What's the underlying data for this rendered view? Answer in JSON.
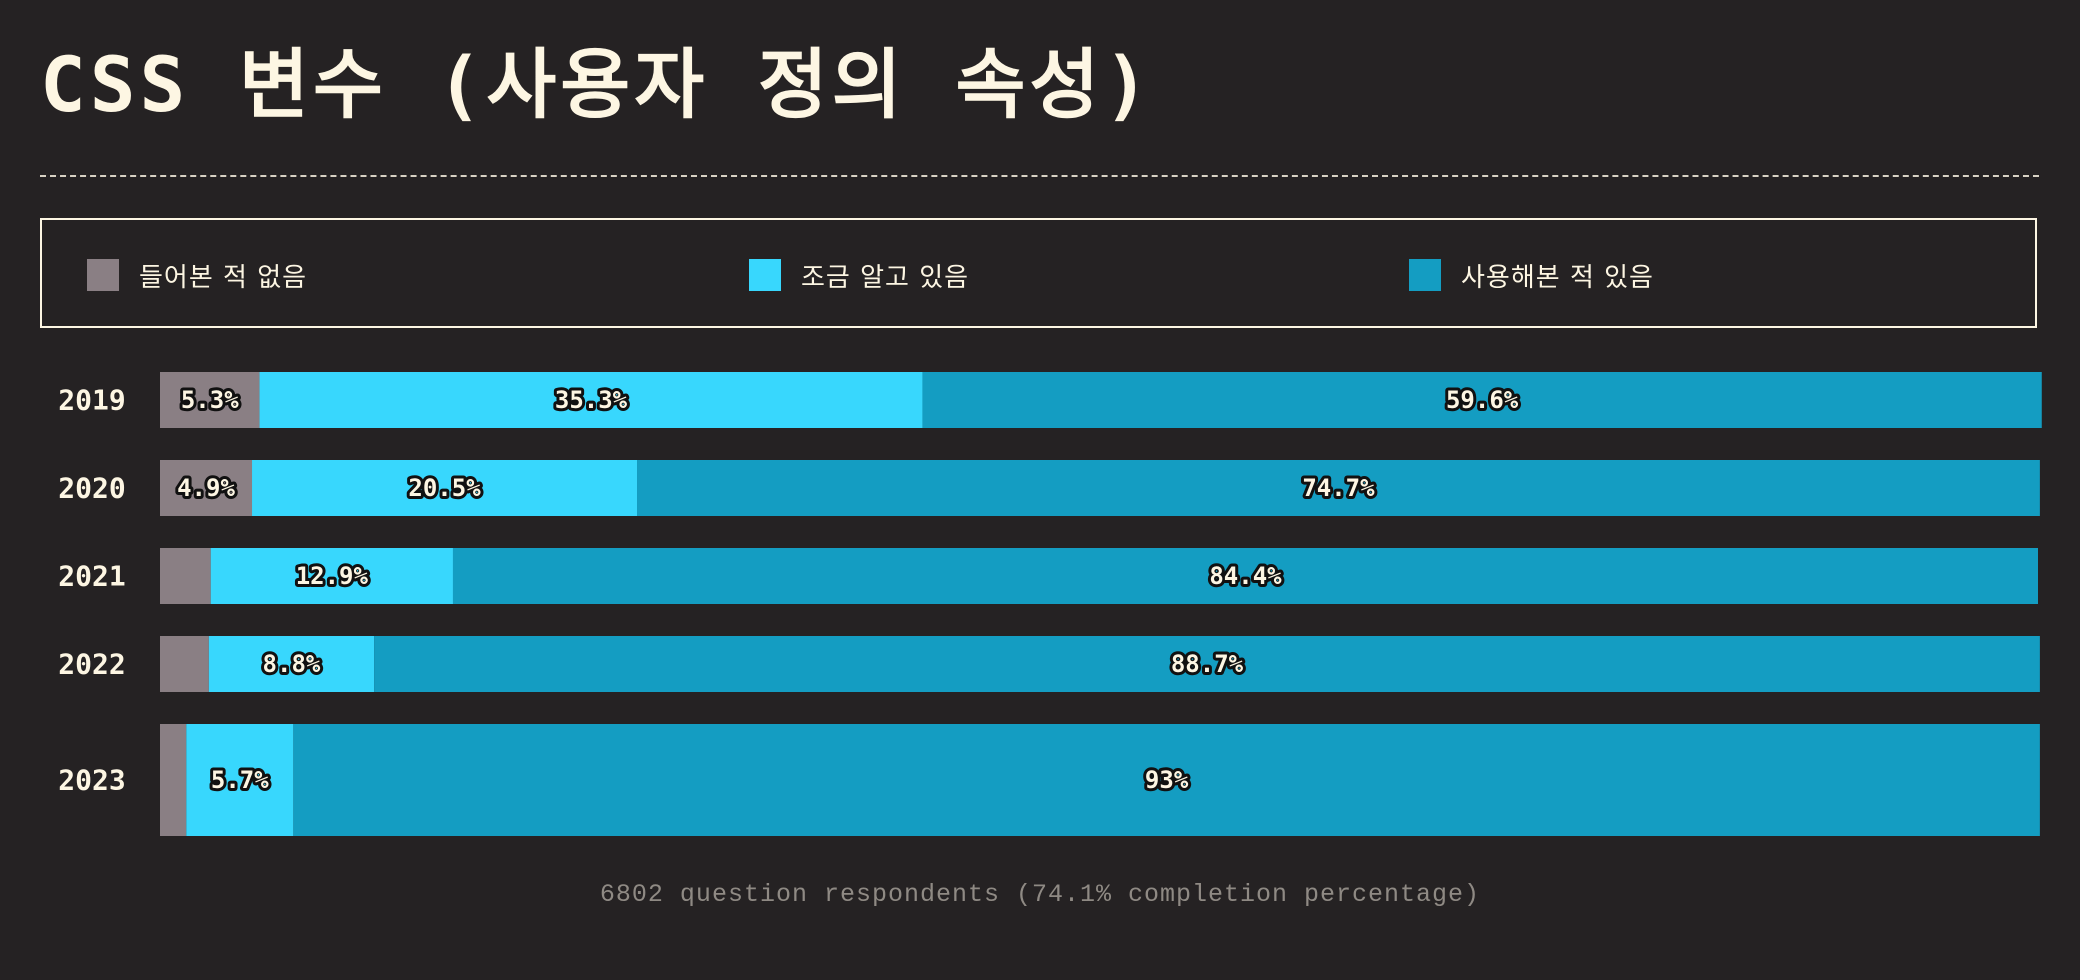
{
  "header": {
    "title": "CSS 변수 (사용자 정의 속성)"
  },
  "colors": {
    "background": "#252223",
    "text": "#fdf6e3",
    "never_heard": "#8a7f84",
    "know_about": "#38d7fd",
    "used": "#149dc2",
    "footnote": "#8f8a84"
  },
  "legend": {
    "items": [
      {
        "label": "들어본 적 없음",
        "color": "#8a7f84"
      },
      {
        "label": "조금 알고 있음",
        "color": "#38d7fd"
      },
      {
        "label": "사용해본 적 있음",
        "color": "#149dc2"
      }
    ]
  },
  "chart_data": {
    "type": "bar",
    "orientation": "horizontal",
    "stacked": true,
    "normalized": true,
    "categories": [
      "2019",
      "2020",
      "2021",
      "2022",
      "2023"
    ],
    "series": [
      {
        "name": "들어본 적 없음",
        "color": "#8a7f84",
        "values": [
          5.3,
          4.9,
          2.7,
          2.6,
          1.4
        ]
      },
      {
        "name": "조금 알고 있음",
        "color": "#38d7fd",
        "values": [
          35.3,
          20.5,
          12.9,
          8.8,
          5.7
        ]
      },
      {
        "name": "사용해본 적 있음",
        "color": "#149dc2",
        "values": [
          59.6,
          74.7,
          84.4,
          88.7,
          93
        ]
      }
    ],
    "data_labels": [
      [
        "5.3%",
        "35.3%",
        "59.6%"
      ],
      [
        "4.9%",
        "20.5%",
        "74.7%"
      ],
      [
        "",
        "12.9%",
        "84.4%"
      ],
      [
        "",
        "8.8%",
        "88.7%"
      ],
      [
        "",
        "5.7%",
        "93%"
      ]
    ],
    "xlim": [
      0,
      100
    ],
    "legend_position": "top",
    "grid": false
  },
  "footnote": "6802 question respondents (74.1% completion percentage)"
}
